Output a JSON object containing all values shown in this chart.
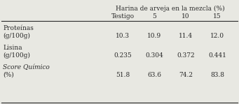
{
  "header_top": "Harina de arveja en la mezcla (%)",
  "header_cols": [
    "Testigo",
    "5",
    "10",
    "15"
  ],
  "row_labels_line1": [
    "Proteínas",
    "Lisina",
    "Score Químico"
  ],
  "row_labels_line2": [
    "(g/100g)",
    "(g/100g)",
    "(%)"
  ],
  "row_label_italic": [
    false,
    false,
    true
  ],
  "values": [
    [
      "10.3",
      "10.9",
      "11.4",
      "12.0"
    ],
    [
      "0.235",
      "0.304",
      "0.372",
      "0.441"
    ],
    [
      "51.8",
      "63.6",
      "74.2",
      "83.8"
    ]
  ],
  "bg_color": "#e8e8e2",
  "text_color": "#2a2a2a",
  "font_size": 6.5
}
